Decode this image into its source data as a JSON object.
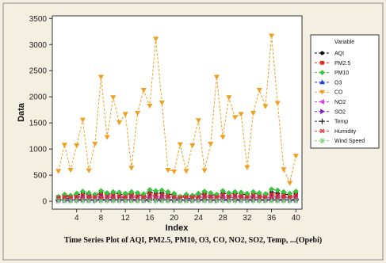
{
  "caption": "Time Series Plot of AQI, PM2.5, PM10, O3, CO, NO2, SO2, Temp, ...(Opebi)",
  "chart_data": {
    "type": "line",
    "xlabel": "Index",
    "ylabel": "Data",
    "xlim": [
      0,
      41
    ],
    "ylim": [
      -150,
      3550
    ],
    "x_ticks": [
      4,
      8,
      12,
      16,
      20,
      24,
      28,
      32,
      36,
      40
    ],
    "y_ticks": [
      0,
      500,
      1000,
      1500,
      2000,
      2500,
      3000,
      3500
    ],
    "grid": false,
    "legend_title": "Variable",
    "legend_position": "right",
    "x": [
      1,
      2,
      3,
      4,
      5,
      6,
      7,
      8,
      9,
      10,
      11,
      12,
      13,
      14,
      15,
      16,
      17,
      18,
      19,
      20,
      21,
      22,
      23,
      24,
      25,
      26,
      27,
      28,
      29,
      30,
      31,
      32,
      33,
      34,
      35,
      36,
      37,
      38,
      39,
      40
    ],
    "series": [
      {
        "name": "AQI",
        "color": "#000000",
        "marker": "circle",
        "values": [
          80,
          110,
          90,
          120,
          150,
          130,
          110,
          160,
          130,
          150,
          140,
          120,
          150,
          130,
          110,
          170,
          150,
          160,
          140,
          120,
          80,
          110,
          90,
          120,
          150,
          130,
          110,
          160,
          130,
          150,
          140,
          120,
          150,
          130,
          110,
          170,
          150,
          140,
          120,
          150
        ]
      },
      {
        "name": "PM2.5",
        "color": "#e8261c",
        "marker": "square",
        "values": [
          60,
          80,
          70,
          90,
          110,
          100,
          80,
          120,
          100,
          110,
          100,
          90,
          110,
          100,
          80,
          130,
          110,
          120,
          100,
          90,
          60,
          80,
          70,
          90,
          110,
          100,
          80,
          120,
          100,
          110,
          100,
          90,
          110,
          100,
          80,
          130,
          110,
          100,
          90,
          110
        ]
      },
      {
        "name": "PM10",
        "color": "#3cc23c",
        "marker": "diamond",
        "values": [
          90,
          130,
          110,
          150,
          190,
          160,
          130,
          200,
          160,
          180,
          170,
          150,
          180,
          160,
          140,
          220,
          200,
          210,
          180,
          150,
          90,
          130,
          110,
          150,
          190,
          160,
          130,
          200,
          160,
          180,
          170,
          150,
          180,
          160,
          140,
          230,
          210,
          180,
          150,
          190
        ]
      },
      {
        "name": "O3",
        "color": "#1f3fd8",
        "marker": "triangle",
        "values": [
          40,
          60,
          50,
          70,
          80,
          70,
          60,
          90,
          70,
          80,
          70,
          60,
          80,
          70,
          60,
          90,
          80,
          90,
          70,
          60,
          40,
          60,
          50,
          70,
          80,
          70,
          60,
          90,
          70,
          80,
          70,
          60,
          80,
          70,
          60,
          90,
          80,
          70,
          60,
          80
        ]
      },
      {
        "name": "CO",
        "color": "#f0a020",
        "marker": "triangle-down",
        "values": [
          580,
          1080,
          600,
          1070,
          1560,
          590,
          1100,
          2380,
          1230,
          1990,
          1510,
          1670,
          640,
          1690,
          2130,
          1830,
          3110,
          1890,
          600,
          570,
          1090,
          580,
          1070,
          1550,
          590,
          1100,
          2380,
          1230,
          1990,
          1610,
          1670,
          650,
          1690,
          2130,
          1820,
          3170,
          1880,
          610,
          350,
          870
        ]
      },
      {
        "name": "NO2",
        "color": "#e23be0",
        "marker": "triangle-left",
        "values": [
          20,
          30,
          25,
          35,
          40,
          30,
          25,
          45,
          35,
          40,
          35,
          30,
          40,
          35,
          30,
          45,
          40,
          45,
          35,
          30,
          20,
          30,
          25,
          35,
          40,
          30,
          25,
          45,
          35,
          40,
          35,
          30,
          40,
          35,
          30,
          45,
          40,
          35,
          30,
          40
        ]
      },
      {
        "name": "SO2",
        "color": "#7b1fd0",
        "marker": "triangle-right",
        "values": [
          10,
          15,
          12,
          18,
          20,
          15,
          12,
          22,
          18,
          20,
          18,
          15,
          20,
          18,
          15,
          22,
          20,
          22,
          18,
          15,
          10,
          15,
          12,
          18,
          20,
          15,
          12,
          22,
          18,
          20,
          18,
          15,
          20,
          18,
          15,
          22,
          20,
          18,
          15,
          20
        ]
      },
      {
        "name": "Temp",
        "color": "#222222",
        "marker": "plus",
        "values": [
          28,
          29,
          28,
          30,
          29,
          28,
          30,
          29,
          28,
          29,
          30,
          28,
          29,
          28,
          30,
          29,
          28,
          29,
          30,
          28,
          28,
          29,
          28,
          30,
          29,
          28,
          30,
          29,
          28,
          29,
          30,
          28,
          29,
          28,
          30,
          29,
          28,
          29,
          30,
          28
        ]
      },
      {
        "name": "Humidity",
        "color": "#e03030",
        "marker": "cross",
        "values": [
          75,
          80,
          78,
          82,
          79,
          77,
          81,
          80,
          76,
          79,
          82,
          78,
          80,
          77,
          81,
          79,
          78,
          80,
          82,
          77,
          75,
          80,
          78,
          82,
          79,
          77,
          81,
          80,
          76,
          79,
          82,
          78,
          80,
          77,
          81,
          79,
          78,
          80,
          82,
          77
        ]
      },
      {
        "name": "Wind Speed",
        "color": "#7fcf7f",
        "marker": "asterisk",
        "values": [
          5,
          6,
          5,
          7,
          6,
          5,
          7,
          6,
          5,
          6,
          7,
          5,
          6,
          5,
          7,
          6,
          5,
          6,
          7,
          5,
          5,
          6,
          5,
          7,
          6,
          5,
          7,
          6,
          5,
          6,
          7,
          5,
          6,
          5,
          7,
          6,
          5,
          6,
          7,
          5
        ]
      }
    ]
  }
}
